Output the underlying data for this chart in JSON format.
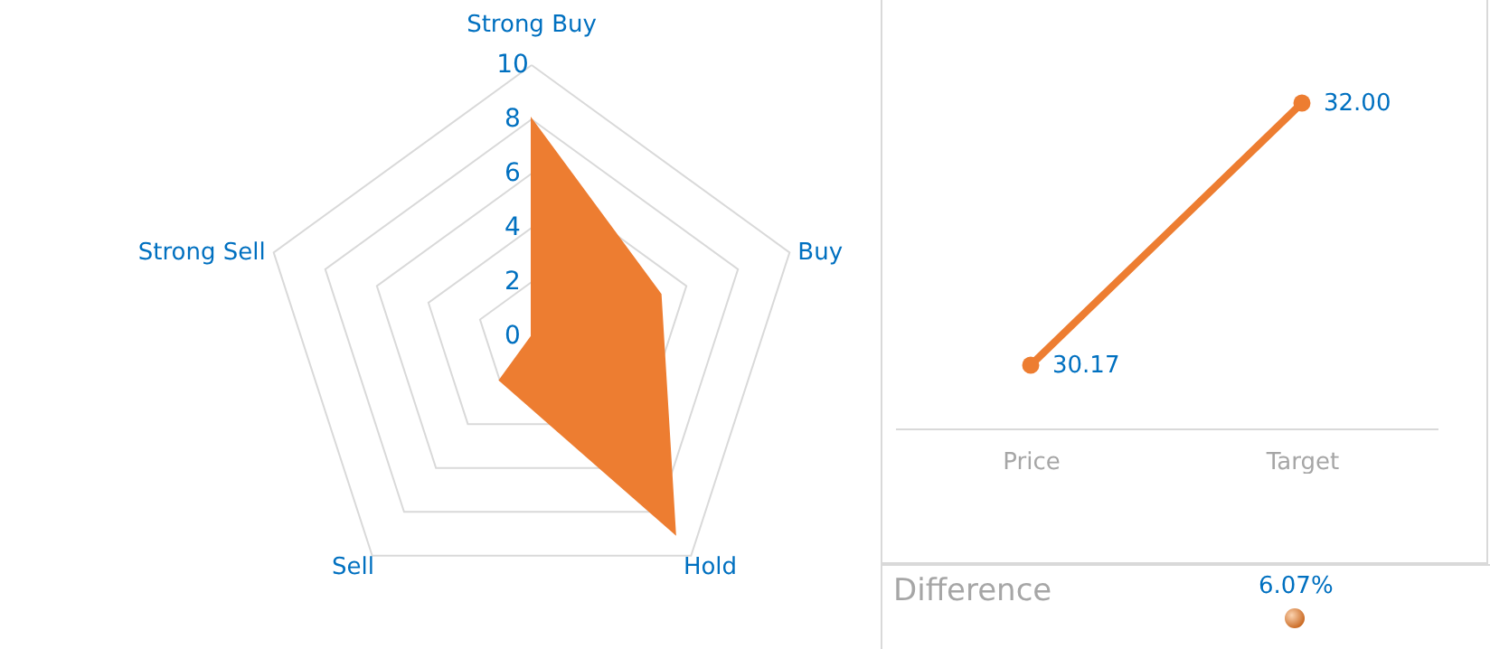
{
  "chart_data": [
    {
      "type": "radar",
      "categories": [
        "Strong Buy",
        "Buy",
        "Hold",
        "Sell",
        "Strong Sell"
      ],
      "series": [
        {
          "color": "#ed7d31",
          "values": [
            8,
            5,
            9,
            2,
            0
          ]
        }
      ],
      "ylim": [
        0,
        10
      ],
      "yticks": [
        0,
        2,
        4,
        6,
        8,
        10
      ],
      "grid": true
    },
    {
      "type": "line",
      "categories": [
        "Price",
        "Target"
      ],
      "series": [
        {
          "color": "#ed7d31",
          "values": [
            30.17,
            32.0
          ],
          "value_labels": [
            "30.17",
            "32.00"
          ]
        }
      ],
      "marker": "circle",
      "tick_labels": "x",
      "annotations": [
        "Difference",
        "6.07%"
      ]
    }
  ]
}
